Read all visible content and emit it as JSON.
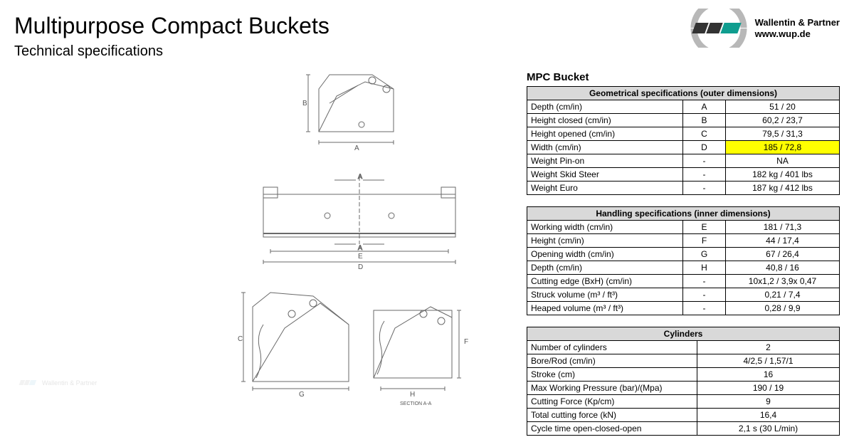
{
  "header": {
    "title": "Multipurpose Compact Buckets",
    "subtitle": "Technical specifications"
  },
  "logo": {
    "company": "Wallentin & Partner",
    "url": "www.wup.de",
    "accent_color": "#0f9d8f",
    "dark_color": "#333333",
    "grey": "#b8b8b8"
  },
  "spec_title": "MPC Bucket",
  "tables": {
    "geometrical": {
      "header": "Geometrical specifications (outer dimensions)",
      "rows": [
        {
          "name": "Depth (cm/in)",
          "label": "A",
          "value": "51 / 20",
          "highlight": false
        },
        {
          "name": "Height closed (cm/in)",
          "label": "B",
          "value": "60,2 / 23,7",
          "highlight": false
        },
        {
          "name": "Height opened (cm/in)",
          "label": "C",
          "value": "79,5 / 31,3",
          "highlight": false
        },
        {
          "name": "Width (cm/in)",
          "label": "D",
          "value": "185 / 72,8",
          "highlight": true
        },
        {
          "name": "Weight Pin-on",
          "label": "-",
          "value": "NA",
          "highlight": false
        },
        {
          "name": "Weight Skid Steer",
          "label": "-",
          "value": "182 kg / 401 lbs",
          "highlight": false
        },
        {
          "name": "Weight Euro",
          "label": "-",
          "value": "187 kg / 412 lbs",
          "highlight": false
        }
      ]
    },
    "handling": {
      "header": "Handling specifications (inner dimensions)",
      "rows": [
        {
          "name": "Working width (cm/in)",
          "label": "E",
          "value": "181 / 71,3"
        },
        {
          "name": "Height (cm/in)",
          "label": "F",
          "value": "44 / 17,4"
        },
        {
          "name": "Opening width (cm/in)",
          "label": "G",
          "value": "67 / 26,4"
        },
        {
          "name": "Depth (cm/in)",
          "label": "H",
          "value": "40,8 / 16"
        },
        {
          "name": "Cutting edge (BxH) (cm/in)",
          "label": "-",
          "value": "10x1,2 / 3,9x 0,47"
        },
        {
          "name": "Struck volume (m³ / ft³)",
          "label": "-",
          "value": "0,21 / 7,4"
        },
        {
          "name": "Heaped volume (m³ / ft³)",
          "label": "-",
          "value": "0,28 / 9,9"
        }
      ]
    },
    "cylinders": {
      "header": "Cylinders",
      "rows": [
        {
          "name": "Number of cylinders",
          "value": "2"
        },
        {
          "name": "Bore/Rod (cm/in)",
          "value": "4/2,5 / 1,57/1"
        },
        {
          "name": "Stroke (cm)",
          "value": "16"
        },
        {
          "name": "Max Working Pressure (bar)/(Mpa)",
          "value": "190 / 19"
        },
        {
          "name": "Cutting Force (Kp/cm)",
          "value": "9"
        },
        {
          "name": "Total cutting force (kN)",
          "value": "16,4"
        },
        {
          "name": "Cycle time open-closed-open",
          "value": "2,1 s (30 L/min)"
        }
      ]
    }
  },
  "diagrams": {
    "stroke": "#6a6a6a",
    "font": "10px",
    "labels": {
      "A": "A",
      "B": "B",
      "C": "C",
      "D": "D",
      "E": "E",
      "F": "F",
      "G": "G",
      "H": "H",
      "sect": "SECTION A-A"
    }
  },
  "highlight_color": "#ffff00",
  "header_bg": "#d9d9d9"
}
